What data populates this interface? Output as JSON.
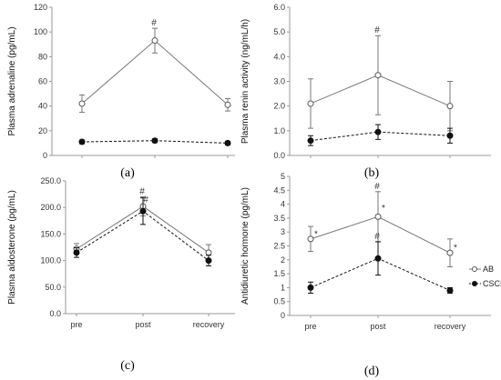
{
  "chart_data": [
    {
      "type": "line",
      "panel_label": "(a)",
      "ylabel": "Plasma  adrenaline (pg/mL)",
      "ylim": [
        0,
        120
      ],
      "yticks": [
        "0",
        "20",
        "40",
        "60",
        "80",
        "100",
        "120"
      ],
      "categories": [
        "pre",
        "post",
        "recovery"
      ],
      "show_xtick_labels": false,
      "series": [
        {
          "name": "AB",
          "values": [
            42,
            93,
            41
          ],
          "err": [
            7,
            10,
            5
          ],
          "marker": "open",
          "line": "solid"
        },
        {
          "name": "CSCI",
          "values": [
            11,
            12,
            10
          ],
          "err": [
            1.5,
            1.5,
            1.5
          ],
          "marker": "filled",
          "line": "dashed"
        }
      ],
      "annotations": [
        {
          "text": "#",
          "series": 0,
          "index": 1
        }
      ]
    },
    {
      "type": "line",
      "panel_label": "(b)",
      "ylabel": "Plasma  renin activity (ng/mL/h)",
      "ylim": [
        0,
        6
      ],
      "yticks": [
        "0.0",
        "1.0",
        "2.0",
        "3.0",
        "4.0",
        "5.0",
        "6.0"
      ],
      "categories": [
        "pre",
        "post",
        "recovery"
      ],
      "show_xtick_labels": false,
      "series": [
        {
          "name": "AB",
          "values": [
            2.1,
            3.25,
            2.0
          ],
          "err": [
            1.0,
            1.6,
            1.0
          ],
          "marker": "open",
          "line": "solid"
        },
        {
          "name": "CSCI",
          "values": [
            0.6,
            0.95,
            0.8
          ],
          "err": [
            0.2,
            0.3,
            0.3
          ],
          "marker": "filled",
          "line": "dashed"
        }
      ],
      "annotations": [
        {
          "text": "#",
          "series": 0,
          "index": 1
        }
      ]
    },
    {
      "type": "line",
      "panel_label": "(c)",
      "ylabel": "Plasma  aldosterone (pg/mL)",
      "ylim": [
        0,
        250
      ],
      "yticks": [
        "0.0",
        "50.0",
        "100.0",
        "150.0",
        "200.0",
        "250.0"
      ],
      "categories": [
        "pre",
        "post",
        "recovery"
      ],
      "show_xtick_labels": true,
      "series": [
        {
          "name": "AB",
          "values": [
            122,
            202,
            115
          ],
          "err": [
            10,
            18,
            15
          ],
          "marker": "open",
          "line": "solid"
        },
        {
          "name": "CSCI",
          "values": [
            115,
            193,
            100
          ],
          "err": [
            9,
            25,
            10
          ],
          "marker": "filled",
          "line": "dashed"
        }
      ],
      "annotations": [
        {
          "text": "#",
          "series": 0,
          "index": 1
        },
        {
          "text": "#",
          "series": 1,
          "index": 1
        }
      ]
    },
    {
      "type": "line",
      "panel_label": "(d)",
      "ylabel": "Antidiuretic hormone (pg/mL)",
      "ylim": [
        0,
        5
      ],
      "yticks": [
        "0",
        "0.5",
        "1",
        "1.5",
        "2",
        "2.5",
        "3",
        "3.5",
        "4",
        "4.5",
        "5"
      ],
      "categories": [
        "pre",
        "post",
        "recovery"
      ],
      "show_xtick_labels": true,
      "series": [
        {
          "name": "AB",
          "values": [
            2.75,
            3.55,
            2.25
          ],
          "err": [
            0.45,
            0.9,
            0.5
          ],
          "marker": "open",
          "line": "solid"
        },
        {
          "name": "CSCI",
          "values": [
            1.0,
            2.05,
            0.9
          ],
          "err": [
            0.2,
            0.6,
            0.1
          ],
          "marker": "filled",
          "line": "dashed"
        }
      ],
      "annotations": [
        {
          "text": "#",
          "series": 0,
          "index": 1
        },
        {
          "text": "*",
          "series": 0,
          "index": 0
        },
        {
          "text": "*",
          "series": 0,
          "index": 1
        },
        {
          "text": "*",
          "series": 0,
          "index": 2
        },
        {
          "text": "#",
          "series": 1,
          "index": 1
        }
      ],
      "legend": {
        "position": "right",
        "entries": [
          "AB",
          "CSCI"
        ]
      }
    }
  ],
  "colors": {
    "AB": "#777777",
    "CSCI": "#111111",
    "axis": "#999999"
  }
}
